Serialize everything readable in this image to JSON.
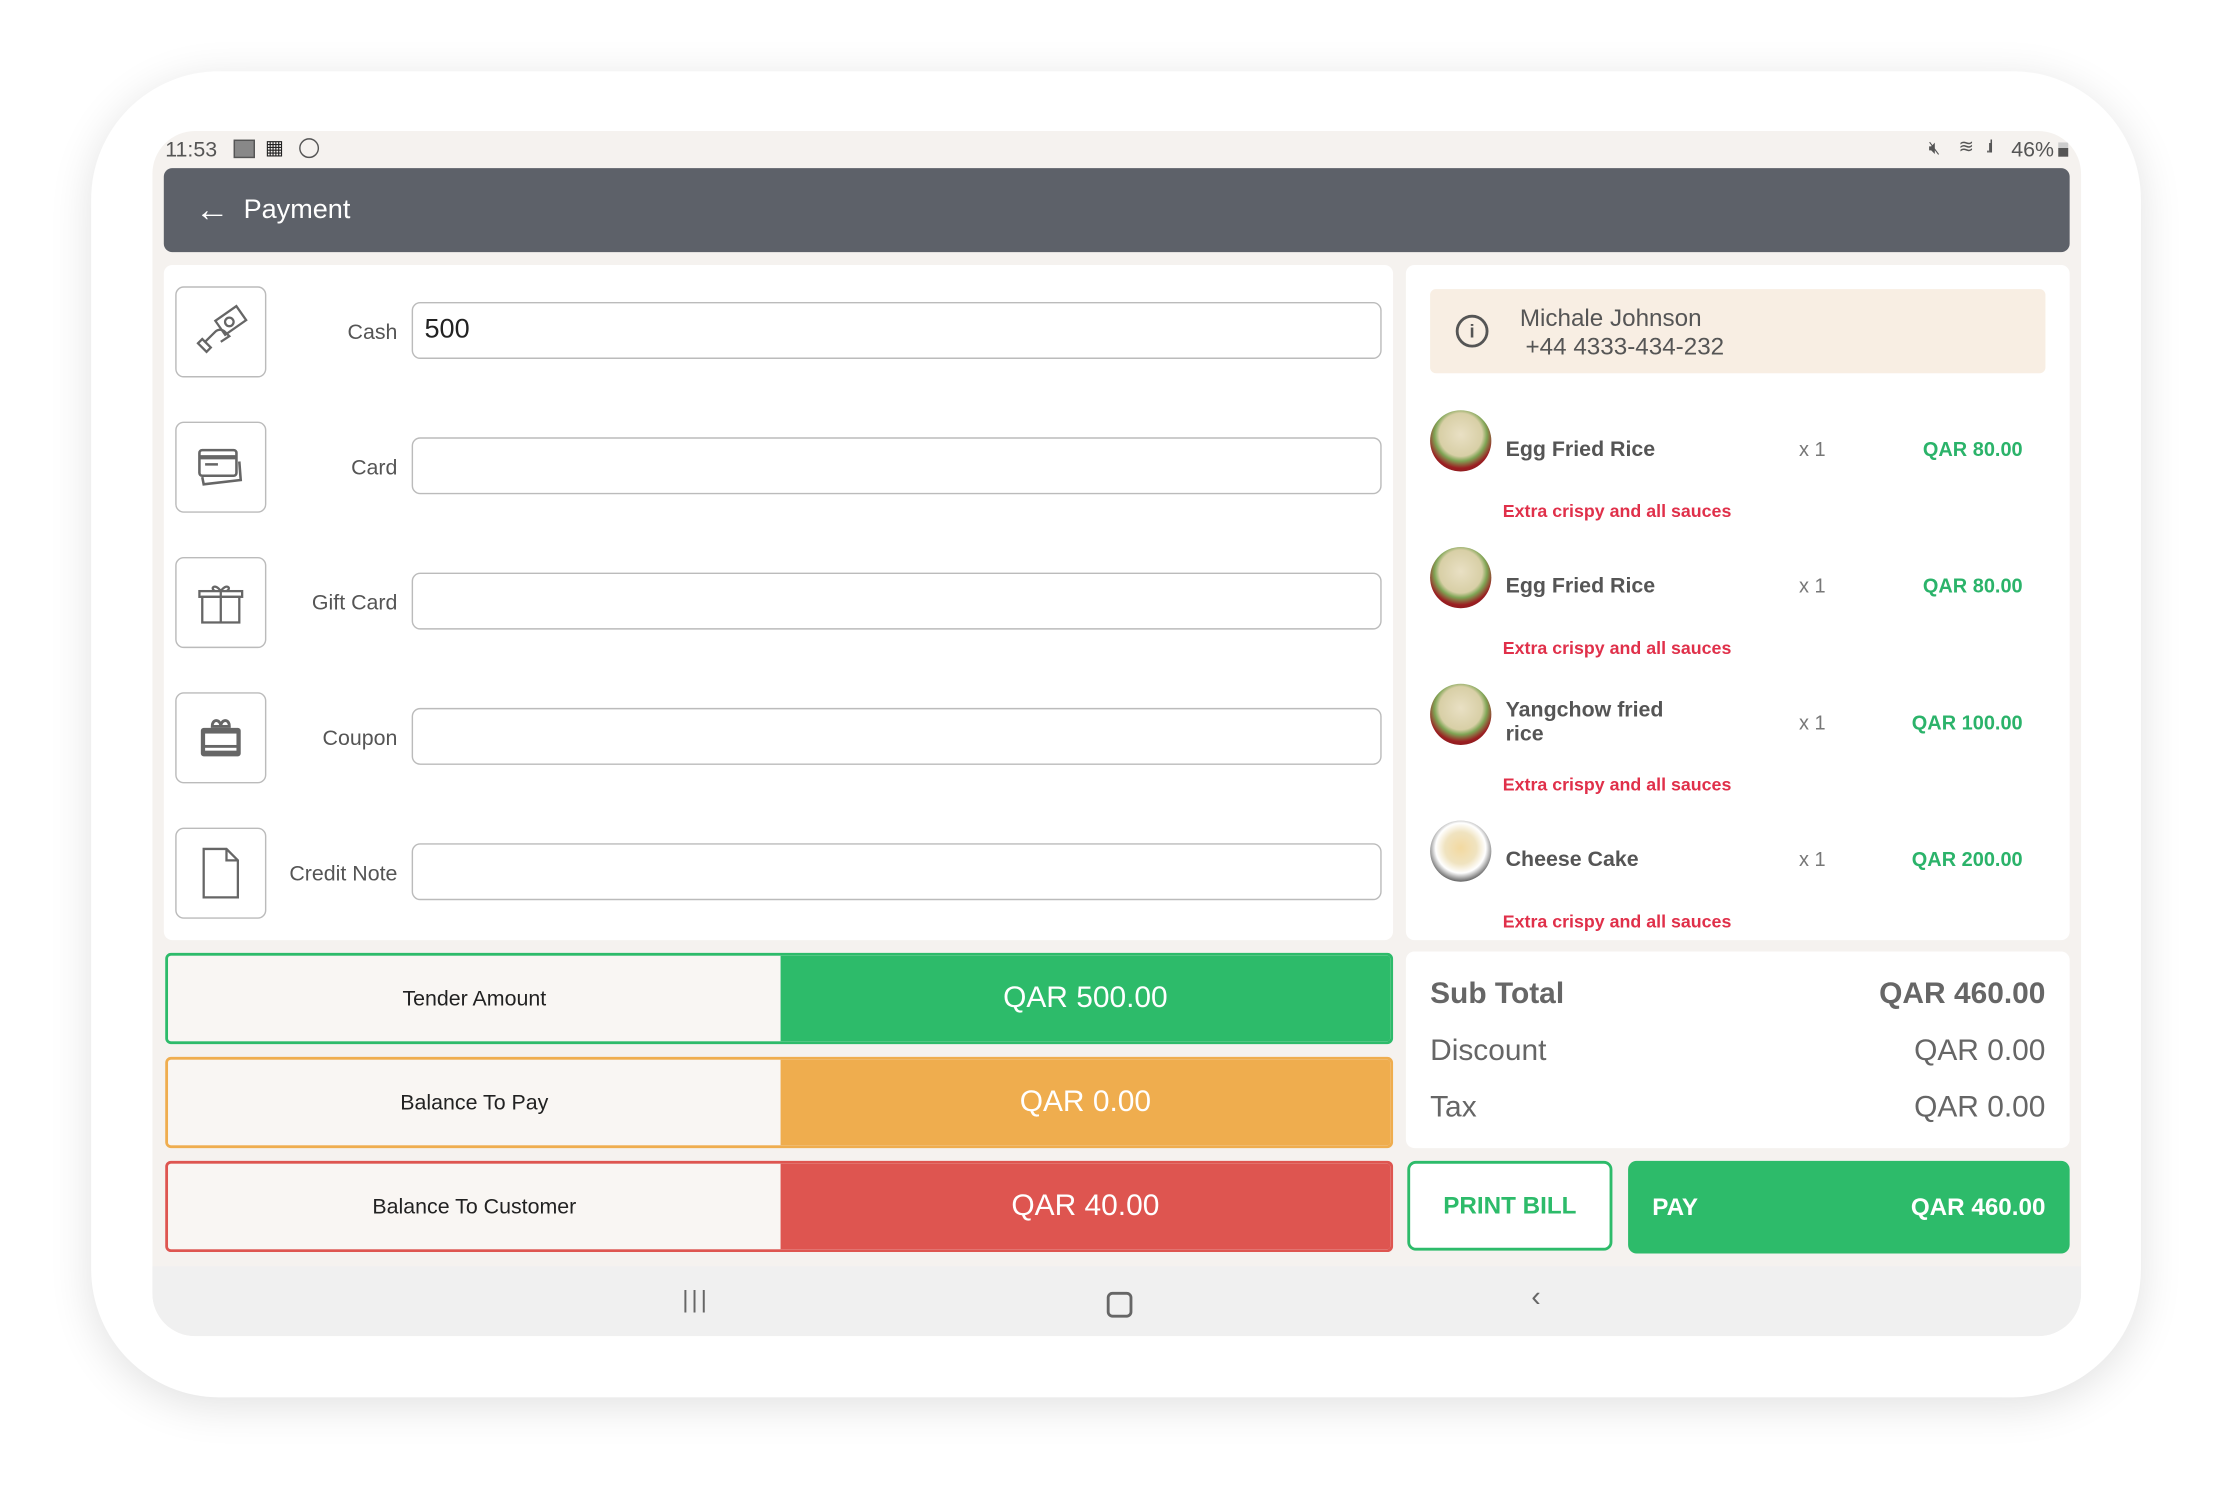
{
  "status_bar": {
    "time": "11:53",
    "battery": "46%",
    "left_icons": [
      "image-icon",
      "club-badge-icon",
      "do-not-disturb-icon"
    ],
    "right_icons": [
      "mute-icon",
      "wifi-icon",
      "signal-icon",
      "battery-icon"
    ]
  },
  "header": {
    "title": "Payment",
    "back_icon": "arrow-left-icon"
  },
  "payment_methods": [
    {
      "label": "Cash",
      "value": "500",
      "icon": "cash-hand-icon"
    },
    {
      "label": "Card",
      "value": "",
      "icon": "credit-card-icon"
    },
    {
      "label": "Gift Card",
      "value": "",
      "icon": "gift-icon"
    },
    {
      "label": "Coupon",
      "value": "",
      "icon": "coupon-icon"
    },
    {
      "label": "Credit Note",
      "value": "",
      "icon": "document-icon"
    }
  ],
  "summary": [
    {
      "label": "Tender Amount",
      "value": "QAR 500.00",
      "color": "#2dbb6a"
    },
    {
      "label": "Balance To Pay",
      "value": "QAR 0.00",
      "color": "#efad4e"
    },
    {
      "label": "Balance To Customer",
      "value": "QAR 40.00",
      "color": "#de5550"
    }
  ],
  "customer": {
    "name": "Michale Johnson",
    "phone": "+44 4333-434-232"
  },
  "items": [
    {
      "name": "Egg Fried Rice",
      "qty": "x 1",
      "price": "QAR 80.00",
      "note": "Extra crispy and all sauces"
    },
    {
      "name": "Egg Fried Rice",
      "qty": "x 1",
      "price": "QAR 80.00",
      "note": "Extra crispy and all sauces"
    },
    {
      "name": "Yangchow fried rice",
      "qty": "x 1",
      "price": "QAR 100.00",
      "note": "Extra crispy and all sauces"
    },
    {
      "name": "Cheese Cake",
      "qty": "x 1",
      "price": "QAR 200.00",
      "note": "Extra crispy and all sauces"
    }
  ],
  "totals": {
    "subtotal_label": "Sub Total",
    "subtotal": "QAR 460.00",
    "discount_label": "Discount",
    "discount": "QAR 0.00",
    "tax_label": "Tax",
    "tax": "QAR 0.00"
  },
  "actions": {
    "print_label": "PRINT BILL",
    "pay_label": "PAY",
    "pay_amount": "QAR 460.00"
  },
  "colors": {
    "header": "#5d6169",
    "green": "#2dbb6a",
    "orange": "#efad4e",
    "red": "#de5550"
  }
}
